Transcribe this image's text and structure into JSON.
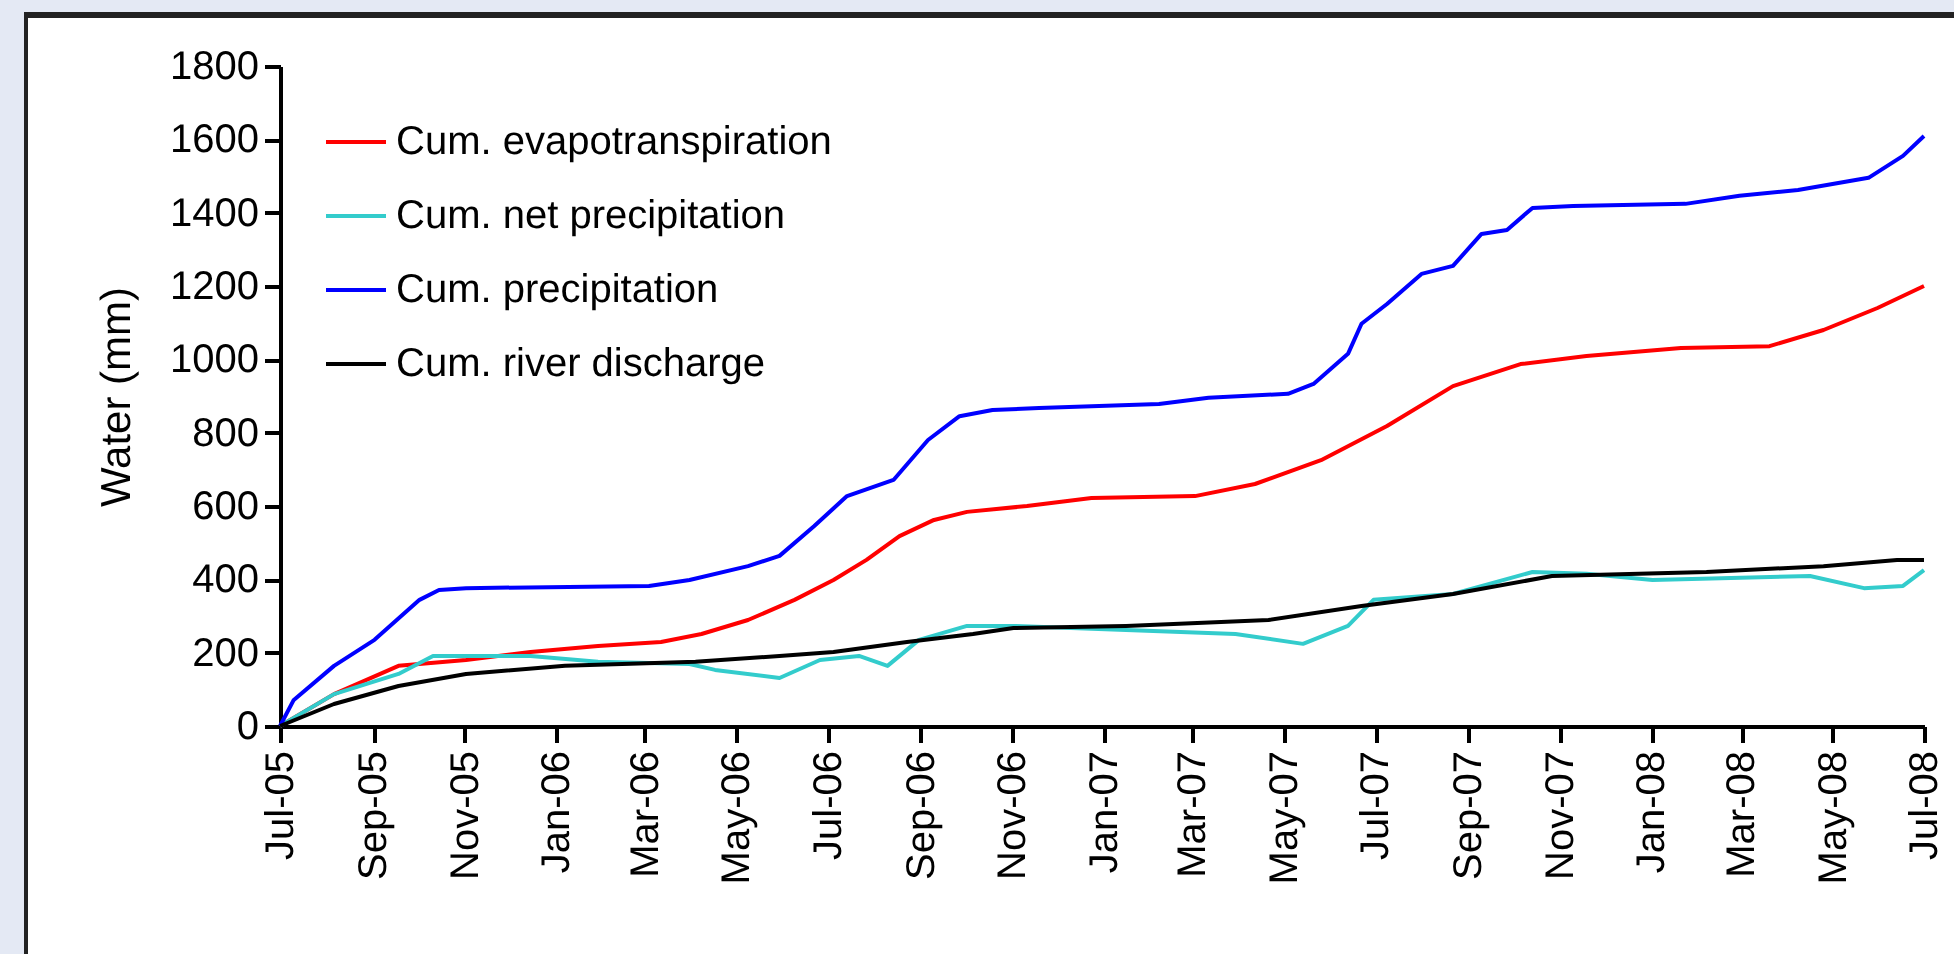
{
  "chart_data": {
    "type": "line",
    "ylabel": "Water (mm)",
    "xlim": [
      "2005-07-01",
      "2008-07-01"
    ],
    "ylim": [
      0,
      1800
    ],
    "yticks": [
      0,
      200,
      400,
      600,
      800,
      1000,
      1200,
      1400,
      1600,
      1800
    ],
    "xticks": [
      {
        "value": "2005-07-01",
        "label": "Jul-05"
      },
      {
        "value": "2005-09-01",
        "label": "Sep-05"
      },
      {
        "value": "2005-11-01",
        "label": "Nov-05"
      },
      {
        "value": "2006-01-01",
        "label": "Jan-06"
      },
      {
        "value": "2006-03-01",
        "label": "Mar-06"
      },
      {
        "value": "2006-05-01",
        "label": "May-06"
      },
      {
        "value": "2006-07-01",
        "label": "Jul-06"
      },
      {
        "value": "2006-09-01",
        "label": "Sep-06"
      },
      {
        "value": "2006-11-01",
        "label": "Nov-06"
      },
      {
        "value": "2007-01-01",
        "label": "Jan-07"
      },
      {
        "value": "2007-03-01",
        "label": "Mar-07"
      },
      {
        "value": "2007-05-01",
        "label": "May-07"
      },
      {
        "value": "2007-07-01",
        "label": "Jul-07"
      },
      {
        "value": "2007-09-01",
        "label": "Sep-07"
      },
      {
        "value": "2007-11-01",
        "label": "Nov-07"
      },
      {
        "value": "2008-01-01",
        "label": "Jan-08"
      },
      {
        "value": "2008-03-01",
        "label": "Mar-08"
      },
      {
        "value": "2008-05-01",
        "label": "May-08"
      },
      {
        "value": "2008-07-01",
        "label": "Jul-08"
      }
    ],
    "grid": false,
    "legend": "top left",
    "line_style": "solid",
    "marker": "none",
    "series": [
      {
        "name": "Cum. evapotranspiration",
        "color": "#ff0000",
        "x": [
          "2005-07-01",
          "2005-08-06",
          "2005-09-18",
          "2005-11-02",
          "2005-12-15",
          "2006-01-29",
          "2006-03-12",
          "2006-04-08",
          "2006-05-09",
          "2006-06-09",
          "2006-07-05",
          "2006-07-27",
          "2006-08-18",
          "2006-09-10",
          "2006-10-02",
          "2006-11-11",
          "2006-12-24",
          "2007-03-03",
          "2007-04-12",
          "2007-05-26",
          "2007-07-09",
          "2007-08-22",
          "2007-10-06",
          "2007-11-19",
          "2008-01-21",
          "2008-03-20",
          "2008-04-25",
          "2008-05-31",
          "2008-07-01"
        ],
        "values": [
          0,
          87,
          164,
          180,
          202,
          218,
          229,
          251,
          289,
          344,
          398,
          453,
          518,
          562,
          584,
          600,
          622,
          627,
          660,
          725,
          818,
          927,
          987,
          1009,
          1031,
          1036,
          1080,
          1140,
          1200
        ]
      },
      {
        "name": "Cum. net precipitation",
        "color": "#33cccc",
        "x": [
          "2005-07-01",
          "2005-08-06",
          "2005-09-18",
          "2005-10-11",
          "2005-12-15",
          "2006-01-29",
          "2006-03-31",
          "2006-04-17",
          "2006-05-30",
          "2006-06-26",
          "2006-07-22",
          "2006-08-10",
          "2006-08-31",
          "2006-10-02",
          "2006-11-02",
          "2007-01-16",
          "2007-03-30",
          "2007-05-14",
          "2007-06-13",
          "2007-06-30",
          "2007-08-22",
          "2007-10-14",
          "2007-11-19",
          "2008-01-02",
          "2008-04-16",
          "2008-05-22",
          "2008-06-17",
          "2008-07-01"
        ],
        "values": [
          0,
          87,
          142,
          191,
          191,
          175,
          169,
          153,
          131,
          180,
          191,
          164,
          235,
          273,
          273,
          262,
          251,
          224,
          273,
          344,
          360,
          420,
          415,
          398,
          409,
          376,
          382,
          425
        ]
      },
      {
        "name": "Cum. precipitation",
        "color": "#0000ff",
        "x": [
          "2005-07-01",
          "2005-07-10",
          "2005-08-06",
          "2005-09-02",
          "2005-10-02",
          "2005-10-15",
          "2005-11-02",
          "2006-03-04",
          "2006-03-31",
          "2006-05-09",
          "2006-05-30",
          "2006-06-22",
          "2006-07-14",
          "2006-08-14",
          "2006-09-06",
          "2006-09-27",
          "2006-10-19",
          "2006-11-19",
          "2007-02-07",
          "2007-03-12",
          "2007-05-04",
          "2007-05-21",
          "2007-06-13",
          "2007-06-22",
          "2007-07-09",
          "2007-08-01",
          "2007-08-22",
          "2007-09-10",
          "2007-09-27",
          "2007-10-14",
          "2007-11-10",
          "2008-01-24",
          "2008-02-29",
          "2008-04-08",
          "2008-05-25",
          "2008-06-17",
          "2008-07-01"
        ],
        "values": [
          0,
          70,
          164,
          235,
          344,
          371,
          376,
          382,
          398,
          436,
          464,
          545,
          627,
          671,
          780,
          845,
          862,
          867,
          878,
          895,
          906,
          933,
          1015,
          1097,
          1151,
          1233,
          1255,
          1342,
          1353,
          1413,
          1418,
          1424,
          1446,
          1462,
          1495,
          1555,
          1609
        ]
      },
      {
        "name": "Cum. river discharge",
        "color": "#000000",
        "x": [
          "2005-07-01",
          "2005-08-06",
          "2005-09-18",
          "2005-11-02",
          "2006-01-07",
          "2006-04-04",
          "2006-05-30",
          "2006-07-05",
          "2006-08-23",
          "2006-10-06",
          "2006-11-02",
          "2007-01-16",
          "2007-04-21",
          "2007-06-22",
          "2007-08-22",
          "2007-10-27",
          "2008-02-07",
          "2008-04-25",
          "2008-06-13",
          "2008-07-01"
        ],
        "values": [
          0,
          60,
          109,
          142,
          164,
          175,
          191,
          202,
          229,
          251,
          267,
          273,
          289,
          327,
          360,
          409,
          420,
          436,
          453,
          453
        ]
      }
    ]
  }
}
